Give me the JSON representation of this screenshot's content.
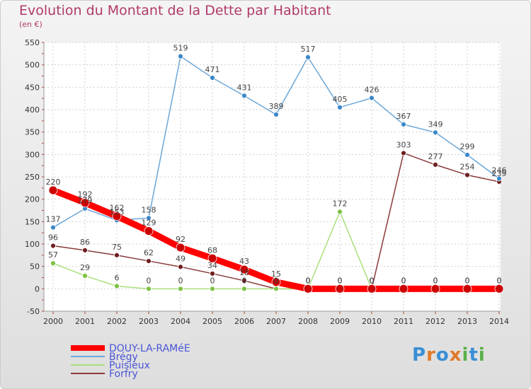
{
  "title": "Evolution du Montant de la Dette par Habitant",
  "unit": "(en €)",
  "logo": "Proxiti",
  "chart_data": {
    "type": "line",
    "x": [
      "2000",
      "2001",
      "2002",
      "2003",
      "2004",
      "2005",
      "2006",
      "2007",
      "2008",
      "2009",
      "2010",
      "2011",
      "2012",
      "2013",
      "2014"
    ],
    "ylim": [
      -50,
      550
    ],
    "yticks": [
      -50,
      0,
      50,
      100,
      150,
      200,
      250,
      300,
      350,
      400,
      450,
      500,
      550
    ],
    "grid": true,
    "legend_position": "bottom-left",
    "series": [
      {
        "name": "DOUY-LA-RAMéE",
        "color": "#ff0000",
        "width": 9,
        "marker": "#cc0000",
        "labels_below": false,
        "values": [
          220,
          192,
          162,
          129,
          92,
          68,
          43,
          15,
          0,
          0,
          0,
          0,
          0,
          0,
          0
        ]
      },
      {
        "name": "Brégy",
        "color": "#6aa7d9",
        "width": 1.5,
        "marker": "#3a87c8",
        "labels_below": false,
        "values": [
          137,
          179,
          153,
          158,
          519,
          471,
          431,
          389,
          517,
          405,
          426,
          367,
          349,
          299,
          246
        ]
      },
      {
        "name": "Puisieux",
        "color": "#a9e07a",
        "width": 1.5,
        "marker": "#7cc242",
        "labels_below": false,
        "values": [
          57,
          29,
          6,
          0,
          0,
          0,
          0,
          0,
          0,
          172,
          0,
          0,
          0,
          0,
          0
        ]
      },
      {
        "name": "Forfry",
        "color": "#8b3a3a",
        "width": 1.5,
        "marker": "#6e1f1f",
        "labels_below": false,
        "values": [
          96,
          86,
          75,
          62,
          49,
          34,
          18,
          0,
          0,
          0,
          0,
          303,
          277,
          254,
          239
        ]
      }
    ]
  }
}
